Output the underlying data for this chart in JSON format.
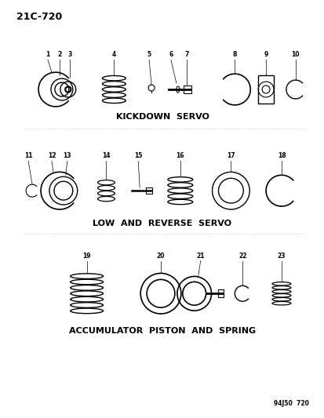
{
  "title": "21C-720",
  "footer": "94J50  720",
  "bg_color": "#ffffff",
  "line_color": "#000000",
  "section1_label": "KICKDOWN  SERVO",
  "section2_label": "LOW  AND  REVERSE  SERVO",
  "section3_label": "ACCUMULATOR  PISTON  AND  SPRING",
  "part_numbers_s1": [
    "1",
    "2",
    "3",
    "4",
    "5",
    "6",
    "7",
    "8",
    "9",
    "10"
  ],
  "part_numbers_s2": [
    "11",
    "12",
    "13",
    "14",
    "15",
    "16",
    "17",
    "18"
  ],
  "part_numbers_s3": [
    "19",
    "20",
    "21",
    "22",
    "23"
  ]
}
